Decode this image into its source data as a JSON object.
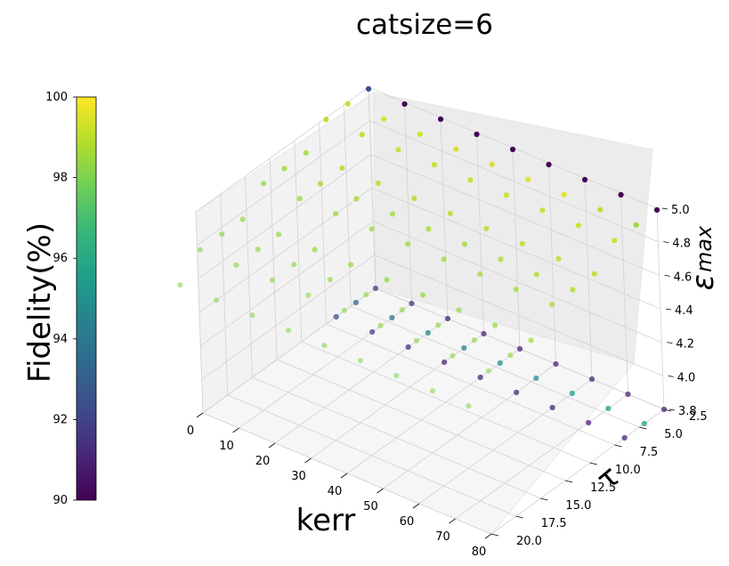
{
  "chart_data": {
    "type": "scatter3d",
    "title": "catsize=6",
    "xlabel": "kerr",
    "ylabel": "τ",
    "zlabel_base": "ε",
    "zlabel_sub": "max",
    "colorbar_label": "Fidelity(%)",
    "colormap": "viridis",
    "colorbar_range": [
      90,
      100
    ],
    "colorbar_ticks": [
      "90",
      "92",
      "94",
      "96",
      "98",
      "100"
    ],
    "xlim": [
      0,
      80
    ],
    "ylim": [
      2.5,
      20.0
    ],
    "zlim": [
      3.8,
      5.0
    ],
    "xticks": [
      "0",
      "10",
      "20",
      "30",
      "40",
      "50",
      "60",
      "70",
      "80"
    ],
    "yticks": [
      "2.5",
      "5.0",
      "7.5",
      "10.0",
      "12.5",
      "15.0",
      "17.5",
      "20.0"
    ],
    "zticks": [
      "3.8",
      "4.0",
      "4.2",
      "4.4",
      "4.6",
      "4.8",
      "5.0"
    ],
    "grid": true,
    "kerr_values": [
      0,
      10,
      20,
      30,
      40,
      50,
      60,
      70,
      80
    ],
    "tau_values": [
      2.5,
      4.6,
      6.8,
      8.9,
      11.1,
      13.2,
      15.4,
      17.5,
      19.7,
      21.8
    ],
    "surface_eps_max": [
      4.99,
      4.88,
      4.76,
      4.64
    ],
    "surface_rows": [
      {
        "kerr": 0,
        "fidelity": [
          92.5,
          99.0,
          98.8,
          98.6,
          98.5,
          98.4,
          98.3,
          98.2,
          98.1,
          98.0
        ]
      },
      {
        "kerr": 10,
        "fidelity": [
          90.1,
          99.3,
          99.0,
          98.8,
          98.6,
          98.5,
          98.4,
          98.3,
          98.2,
          98.1
        ]
      },
      {
        "kerr": 20,
        "fidelity": [
          90.0,
          99.3,
          99.1,
          98.9,
          98.7,
          98.5,
          98.4,
          98.3,
          98.2,
          98.1
        ]
      },
      {
        "kerr": 30,
        "fidelity": [
          90.0,
          99.4,
          99.1,
          98.9,
          98.7,
          98.5,
          98.4,
          98.3,
          98.2,
          98.1
        ]
      },
      {
        "kerr": 40,
        "fidelity": [
          90.0,
          99.4,
          99.1,
          98.9,
          98.7,
          98.5,
          98.4,
          98.3,
          98.2,
          98.1
        ]
      },
      {
        "kerr": 50,
        "fidelity": [
          90.0,
          99.5,
          99.2,
          98.9,
          98.7,
          98.5,
          98.4,
          98.3,
          98.2,
          98.1
        ]
      },
      {
        "kerr": 60,
        "fidelity": [
          90.0,
          99.5,
          99.2,
          99.0,
          98.8,
          98.6,
          98.4,
          98.3,
          98.2,
          98.1
        ]
      },
      {
        "kerr": 70,
        "fidelity": [
          90.0,
          99.0,
          99.2,
          99.0,
          98.8,
          98.6,
          98.4,
          98.3,
          98.2,
          98.1
        ]
      },
      {
        "kerr": 80,
        "fidelity": [
          90.0,
          98.5,
          99.2,
          99.0,
          98.8,
          98.6,
          98.5,
          98.4,
          98.2,
          98.1
        ]
      }
    ],
    "projection_rows": [
      {
        "kerr": 0,
        "fidelity": [
          92.0,
          93.5,
          92.5
        ]
      },
      {
        "kerr": 10,
        "fidelity": [
          91.5,
          94.0,
          92.0
        ]
      },
      {
        "kerr": 20,
        "fidelity": [
          91.0,
          94.5,
          91.5
        ]
      },
      {
        "kerr": 30,
        "fidelity": [
          91.0,
          94.5,
          91.0
        ]
      },
      {
        "kerr": 40,
        "fidelity": [
          91.0,
          95.0,
          91.0
        ]
      },
      {
        "kerr": 50,
        "fidelity": [
          91.0,
          95.0,
          91.0
        ]
      },
      {
        "kerr": 60,
        "fidelity": [
          91.0,
          95.5,
          91.0
        ]
      },
      {
        "kerr": 70,
        "fidelity": [
          91.0,
          95.5,
          91.0
        ]
      },
      {
        "kerr": 80,
        "fidelity": [
          91.0,
          95.5,
          91.0
        ]
      }
    ]
  }
}
